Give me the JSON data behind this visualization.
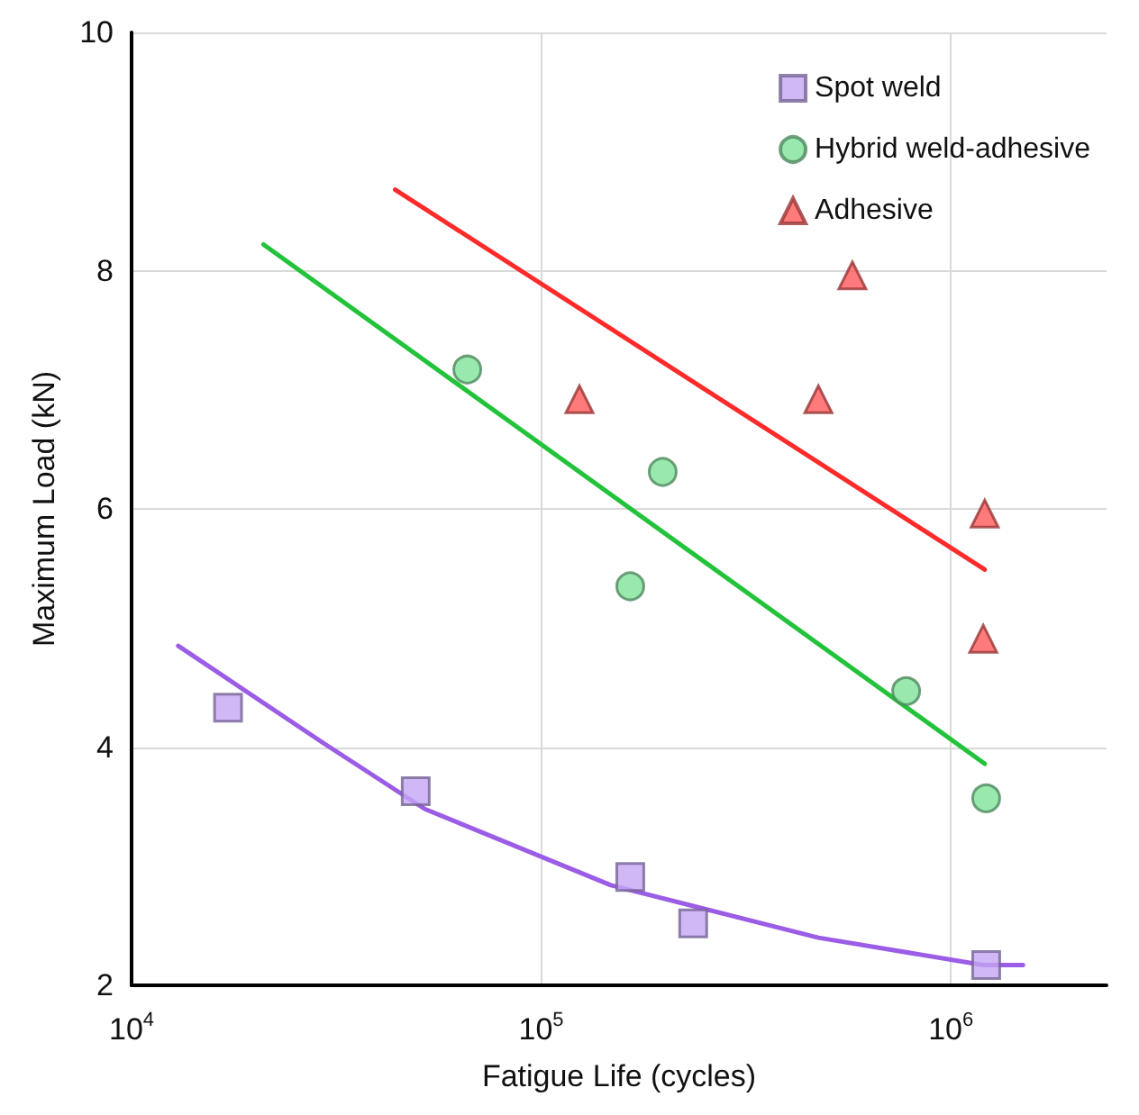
{
  "chart_data": {
    "type": "scatter",
    "xlabel": "Fatigue Life (cycles)",
    "ylabel": "Maximum Load (kN)",
    "log": "x",
    "xlim": [
      10000,
      2400000
    ],
    "xticks": [
      {
        "value": 10000,
        "label": "10$^{4}$"
      },
      {
        "value": 100000,
        "label": "10$^{5}$"
      },
      {
        "value": 1000000,
        "label": "10$^{6}$"
      }
    ],
    "ylim": [
      2,
      10
    ],
    "yticks": [
      2,
      4,
      6,
      8,
      10
    ],
    "grid": true,
    "legend": "top right",
    "series": [
      {
        "name": "Spot weld",
        "color": "#c4a6f5",
        "marker": "square",
        "x": [
          17200,
          49400,
          165000,
          235000,
          1220000
        ],
        "values": [
          4.33,
          3.63,
          2.91,
          2.52,
          2.17
        ]
      },
      {
        "name": "Hybrid weld-adhesive",
        "color": "#7fe39a",
        "marker": "circle",
        "x": [
          66000,
          198000,
          165000,
          778000,
          1220000
        ],
        "values": [
          7.17,
          6.31,
          5.35,
          4.47,
          3.57
        ]
      },
      {
        "name": "Adhesive",
        "color": "#ff5a5a",
        "marker": "triangle",
        "x": [
          124000,
          475000,
          575000,
          1210000,
          1200000
        ],
        "values": [
          6.92,
          6.92,
          7.96,
          5.96,
          4.91
        ]
      },
      {
        "type": "line",
        "color": "#9b5ce6",
        "marker": "none",
        "x": [
          13000,
          29500,
          52000,
          148000,
          475000,
          1200000,
          1500000
        ],
        "values": [
          4.85,
          4.03,
          3.48,
          2.84,
          2.4,
          2.17,
          2.17
        ]
      },
      {
        "type": "line",
        "color": "#22c33a",
        "marker": "none",
        "x": [
          21000,
          1210000
        ],
        "values": [
          8.22,
          3.86
        ]
      },
      {
        "type": "line",
        "color": "#ff2a2a",
        "marker": "none",
        "x": [
          44000,
          1210000
        ],
        "values": [
          8.68,
          5.49
        ]
      }
    ]
  }
}
